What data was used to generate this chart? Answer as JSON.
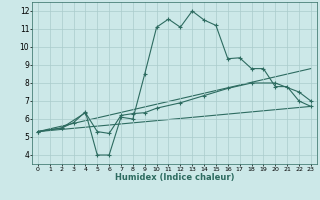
{
  "xlabel": "Humidex (Indice chaleur)",
  "bg_color": "#cce8e8",
  "line_color": "#2d6b60",
  "grid_color": "#aacccc",
  "xlim": [
    -0.5,
    23.5
  ],
  "ylim": [
    3.5,
    12.5
  ],
  "xticks": [
    0,
    1,
    2,
    3,
    4,
    5,
    6,
    7,
    8,
    9,
    10,
    11,
    12,
    13,
    14,
    15,
    16,
    17,
    18,
    19,
    20,
    21,
    22,
    23
  ],
  "yticks": [
    4,
    5,
    6,
    7,
    8,
    9,
    10,
    11,
    12
  ],
  "line1_x": [
    0,
    2,
    3,
    4,
    5,
    6,
    7,
    8,
    9,
    10,
    11,
    12,
    13,
    14,
    15,
    16,
    17,
    18,
    19,
    20,
    21,
    22,
    23
  ],
  "line1_y": [
    5.3,
    5.5,
    5.8,
    6.4,
    4.0,
    4.0,
    6.1,
    6.0,
    8.5,
    11.1,
    11.55,
    11.1,
    12.0,
    11.5,
    11.2,
    9.35,
    9.4,
    8.8,
    8.8,
    7.8,
    7.8,
    7.0,
    6.7
  ],
  "line2_x": [
    0,
    2,
    4,
    5,
    6,
    7,
    8,
    9,
    10,
    12,
    14,
    16,
    18,
    20,
    22,
    23
  ],
  "line2_y": [
    5.3,
    5.5,
    6.35,
    5.3,
    5.2,
    6.2,
    6.3,
    6.35,
    6.6,
    6.9,
    7.3,
    7.7,
    8.0,
    8.0,
    7.5,
    7.0
  ],
  "line3_x": [
    0,
    23
  ],
  "line3_y": [
    5.3,
    8.8
  ],
  "line4_x": [
    0,
    23
  ],
  "line4_y": [
    5.3,
    6.7
  ]
}
